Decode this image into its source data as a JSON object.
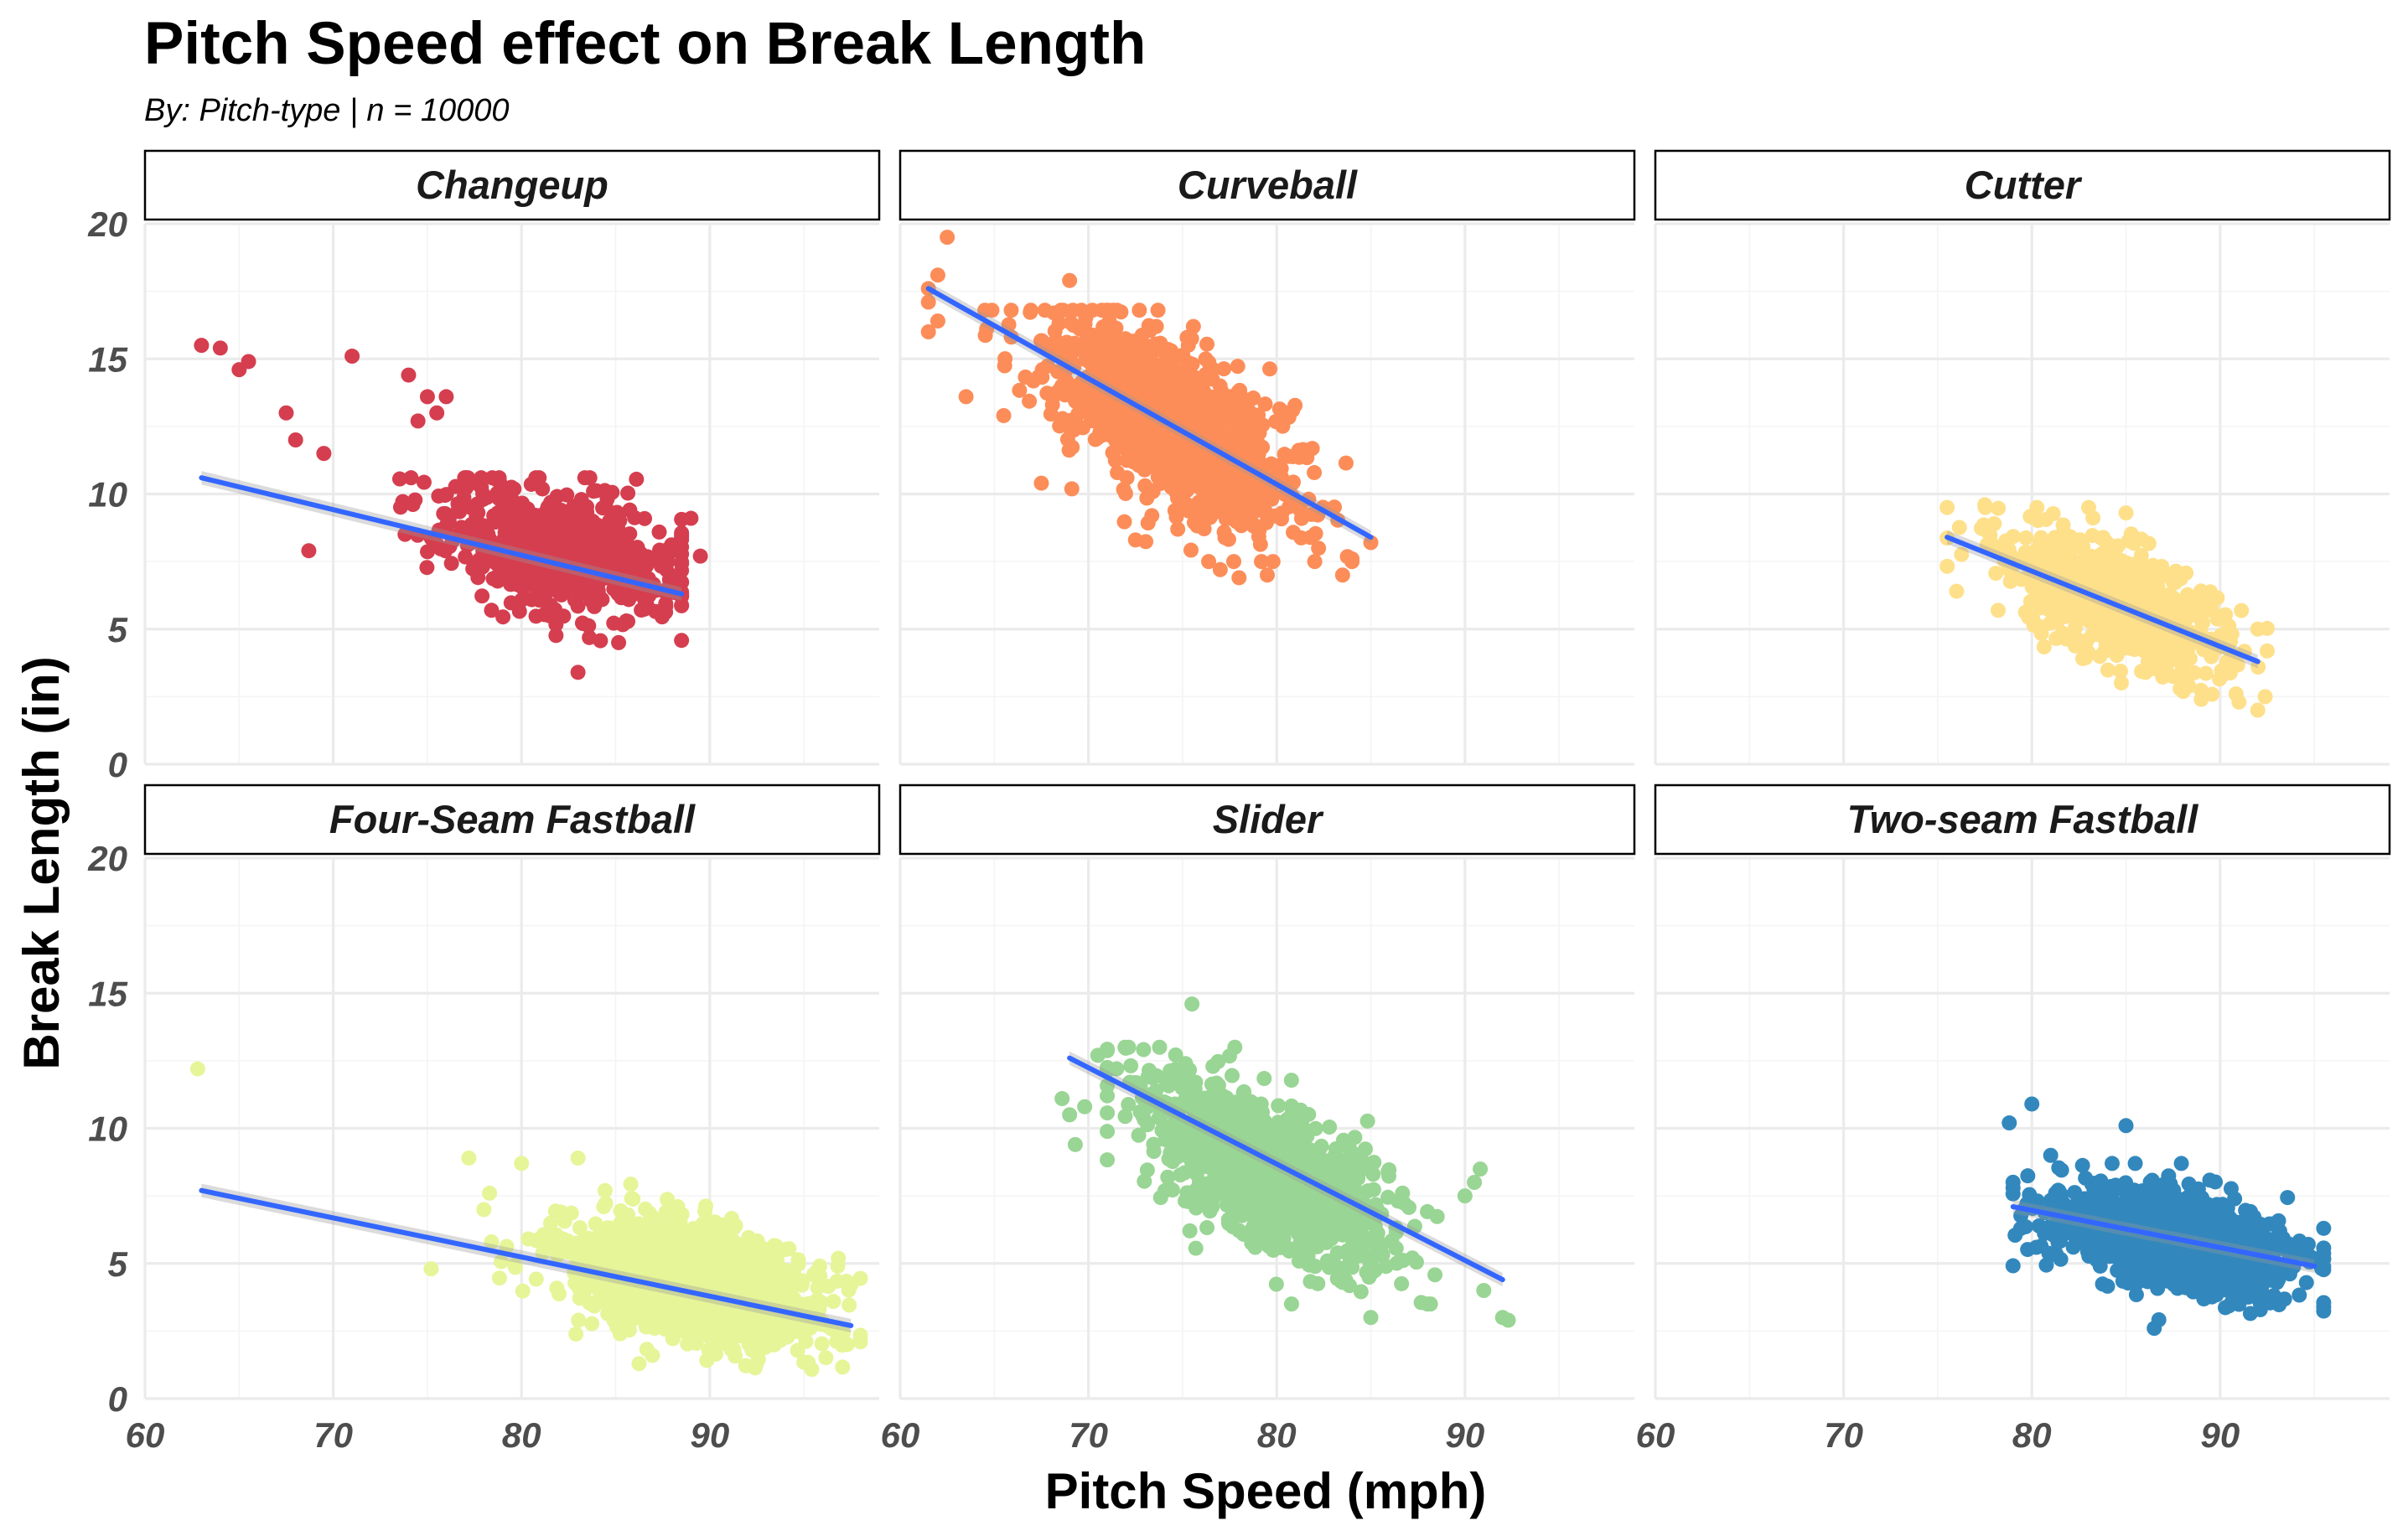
{
  "chart_data": {
    "type": "scatter",
    "title": "Pitch Speed effect on Break Length",
    "subtitle": "By: Pitch-type | n = 10000",
    "xlabel": "Pitch Speed (mph)",
    "ylabel": "Break Length (in)",
    "xlim": [
      60,
      99
    ],
    "ylim": [
      0,
      20
    ],
    "x_ticks": [
      60,
      70,
      80,
      90
    ],
    "y_ticks": [
      0,
      5,
      10,
      15,
      20
    ],
    "grid": true,
    "trend_color": "#3366ff",
    "panels": [
      {
        "name": "Changeup",
        "color": "#d53e4f",
        "speed_range": [
          63,
          88.5
        ],
        "trend": {
          "x": [
            63,
            88.5
          ],
          "y": [
            10.6,
            6.3
          ]
        },
        "outliers": [
          [
            63,
            15.5
          ],
          [
            64,
            15.4
          ],
          [
            65.5,
            14.9
          ],
          [
            65,
            14.6
          ],
          [
            67.5,
            13.0
          ],
          [
            68,
            12.0
          ],
          [
            69.5,
            11.5
          ],
          [
            68.7,
            7.9
          ],
          [
            71,
            15.1
          ],
          [
            74,
            14.4
          ],
          [
            75,
            13.6
          ],
          [
            74.5,
            12.7
          ],
          [
            76,
            13.6
          ],
          [
            75.5,
            13.0
          ],
          [
            83,
            3.4
          ],
          [
            89,
            9.1
          ],
          [
            89.5,
            7.7
          ]
        ],
        "cluster": {
          "center": [
            82,
            7.9
          ],
          "spread": [
            3.2,
            1.1
          ],
          "count": 650,
          "x_range": [
            71.5,
            88.5
          ],
          "y_range": [
            4.5,
            10.6
          ]
        }
      },
      {
        "name": "Curveball",
        "color": "#fc8d59",
        "speed_range": [
          61.5,
          85
        ],
        "trend": {
          "x": [
            61.5,
            85
          ],
          "y": [
            17.6,
            8.4
          ]
        },
        "outliers": [
          [
            62.5,
            19.5
          ],
          [
            62,
            18.1
          ],
          [
            61.5,
            17.6
          ],
          [
            61.5,
            17.1
          ],
          [
            62,
            16.4
          ],
          [
            61.5,
            16.0
          ],
          [
            63.5,
            13.6
          ],
          [
            65.5,
            12.9
          ],
          [
            69,
            17.9
          ],
          [
            67.5,
            10.4
          ],
          [
            72.5,
            8.3
          ],
          [
            77,
            7.2
          ],
          [
            78,
            6.9
          ],
          [
            79.5,
            7.0
          ],
          [
            83.5,
            7.0
          ],
          [
            84,
            7.6
          ],
          [
            85,
            8.2
          ]
        ],
        "cluster": {
          "center": [
            74.5,
            12.5
          ],
          "spread": [
            3.2,
            1.45
          ],
          "count": 1100,
          "x_range": [
            64.5,
            84
          ],
          "y_range": [
            7.5,
            16.8
          ]
        }
      },
      {
        "name": "Cutter",
        "color": "#fee08b",
        "speed_range": [
          75.5,
          92
        ],
        "trend": {
          "x": [
            75.5,
            92
          ],
          "y": [
            8.4,
            3.8
          ]
        },
        "outliers": [
          [
            75.5,
            9.5
          ],
          [
            76,
            6.4
          ],
          [
            77.5,
            9.6
          ],
          [
            78,
            8.9
          ],
          [
            85,
            9.3
          ],
          [
            89,
            2.4
          ],
          [
            91,
            2.3
          ],
          [
            92,
            2.0
          ],
          [
            92,
            5.0
          ]
        ],
        "cluster": {
          "center": [
            84.5,
            6.0
          ],
          "spread": [
            3.0,
            1.05
          ],
          "count": 700,
          "x_range": [
            75.5,
            92.5
          ],
          "y_range": [
            2.5,
            9.5
          ]
        }
      },
      {
        "name": "Four-Seam Fastball",
        "color": "#e6f598",
        "speed_range": [
          63,
          97.5
        ],
        "trend": {
          "x": [
            63,
            97.5
          ],
          "y": [
            7.7,
            2.7
          ]
        },
        "outliers": [
          [
            62.8,
            12.2
          ],
          [
            75.2,
            4.8
          ],
          [
            77.2,
            8.9
          ],
          [
            78.3,
            7.6
          ],
          [
            80,
            8.7
          ],
          [
            83,
            8.9
          ],
          [
            96.8,
            4.9
          ],
          [
            97.3,
            2.0
          ],
          [
            98,
            2.1
          ]
        ],
        "cluster": {
          "center": [
            89,
            4.3
          ],
          "spread": [
            3.0,
            1.0
          ],
          "count": 1700,
          "x_range": [
            78,
            98
          ],
          "y_range": [
            1.0,
            8.0
          ]
        }
      },
      {
        "name": "Slider",
        "color": "#99d594",
        "speed_range": [
          69,
          92
        ],
        "trend": {
          "x": [
            69,
            92
          ],
          "y": [
            12.6,
            4.4
          ]
        },
        "outliers": [
          [
            68.6,
            11.1
          ],
          [
            69,
            10.5
          ],
          [
            69.3,
            9.4
          ],
          [
            69.8,
            10.8
          ],
          [
            70.5,
            12.7
          ],
          [
            71.5,
            12.2
          ],
          [
            75.5,
            14.6
          ],
          [
            85,
            3.0
          ],
          [
            88,
            3.5
          ],
          [
            90,
            7.5
          ],
          [
            90.5,
            8.0
          ],
          [
            91,
            4.0
          ],
          [
            92,
            3.0
          ],
          [
            92.3,
            2.9
          ]
        ],
        "cluster": {
          "center": [
            79.5,
            8.4
          ],
          "spread": [
            3.3,
            1.35
          ],
          "count": 1100,
          "x_range": [
            71,
            91
          ],
          "y_range": [
            3.5,
            13.0
          ]
        }
      },
      {
        "name": "Two-seam Fastball",
        "color": "#3288bd",
        "speed_range": [
          79,
          95
        ],
        "trend": {
          "x": [
            79,
            95
          ],
          "y": [
            7.1,
            4.9
          ]
        },
        "outliers": [
          [
            78.8,
            10.2
          ],
          [
            80,
            10.9
          ],
          [
            81,
            9.0
          ],
          [
            85,
            10.1
          ],
          [
            95.5,
            6.3
          ],
          [
            86.5,
            2.6
          ],
          [
            79,
            7.8
          ]
        ],
        "cluster": {
          "center": [
            87.5,
            5.9
          ],
          "spread": [
            3.0,
            0.85
          ],
          "count": 1300,
          "x_range": [
            79,
            95.5
          ],
          "y_range": [
            2.7,
            8.7
          ]
        }
      }
    ]
  }
}
